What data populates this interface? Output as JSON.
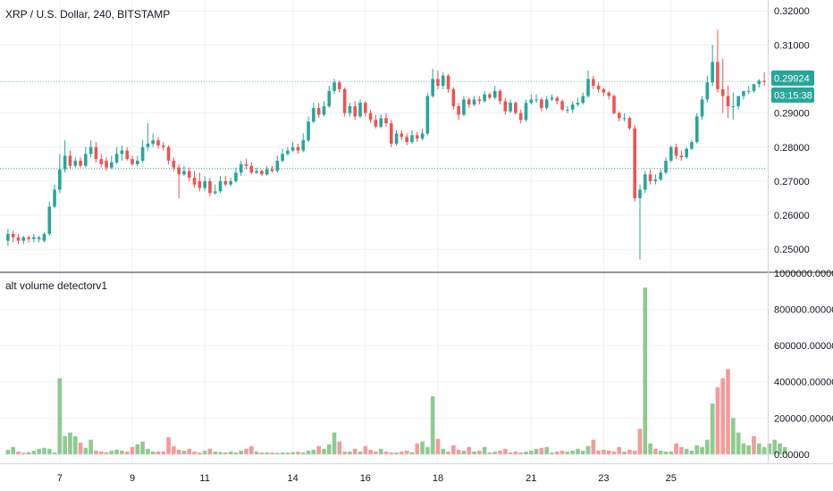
{
  "colors": {
    "up": "#26a69a",
    "down": "#ef5350",
    "vol_up": "#8fca8f",
    "vol_down": "#f29b9b",
    "grid": "#eef0f3",
    "divider": "#3a3a3a",
    "axis_line": "#d1d4dc",
    "dotted_line": "#26a69a",
    "tag_bg": "#26a69a"
  },
  "chart_data": [
    {
      "type": "candlestick",
      "title": "XRP / U.S. Dollar, 240, BITSTAMP",
      "ylim": [
        0.2435,
        0.3232
      ],
      "y_ticks": [
        "0.32000",
        "0.31000",
        "0.29000",
        "0.28000",
        "0.27000",
        "0.26000",
        "0.25000"
      ],
      "y_tick_values": [
        0.32,
        0.31,
        0.29,
        0.28,
        0.27,
        0.26,
        0.25
      ],
      "x_ticks": [
        "7",
        "9",
        "11",
        "14",
        "16",
        "18",
        "21",
        "23",
        "25"
      ],
      "last_price": "0.29924",
      "countdown": "03:15:38",
      "reference_line": 0.2737,
      "candles_close": [
        0.2545,
        0.2535,
        0.2525,
        0.2535,
        0.253,
        0.2535,
        0.2535,
        0.2545,
        0.2625,
        0.2675,
        0.2735,
        0.2775,
        0.2745,
        0.276,
        0.2745,
        0.278,
        0.28,
        0.2765,
        0.275,
        0.274,
        0.2755,
        0.278,
        0.279,
        0.2765,
        0.275,
        0.276,
        0.28,
        0.281,
        0.282,
        0.2805,
        0.28,
        0.276,
        0.274,
        0.272,
        0.273,
        0.271,
        0.269,
        0.268,
        0.27,
        0.2665,
        0.267,
        0.27,
        0.269,
        0.27,
        0.2725,
        0.275,
        0.2745,
        0.2725,
        0.273,
        0.272,
        0.2735,
        0.273,
        0.276,
        0.278,
        0.279,
        0.28,
        0.279,
        0.282,
        0.2875,
        0.2915,
        0.2895,
        0.292,
        0.2965,
        0.299,
        0.297,
        0.29,
        0.292,
        0.289,
        0.293,
        0.29,
        0.288,
        0.286,
        0.2885,
        0.287,
        0.281,
        0.284,
        0.283,
        0.2815,
        0.2835,
        0.2825,
        0.284,
        0.295,
        0.3,
        0.298,
        0.301,
        0.297,
        0.292,
        0.2895,
        0.294,
        0.2925,
        0.294,
        0.2935,
        0.2955,
        0.2945,
        0.2965,
        0.2935,
        0.2905,
        0.293,
        0.29,
        0.288,
        0.293,
        0.294,
        0.294,
        0.2915,
        0.294,
        0.2945,
        0.2935,
        0.291,
        0.291,
        0.2925,
        0.293,
        0.295,
        0.3,
        0.298,
        0.297,
        0.296,
        0.295,
        0.29,
        0.2885,
        0.2885,
        0.2855,
        0.265,
        0.2675,
        0.272,
        0.27,
        0.2705,
        0.2725,
        0.276,
        0.28,
        0.2775,
        0.277,
        0.2795,
        0.2815,
        0.289,
        0.294,
        0.299,
        0.305,
        0.297,
        0.295,
        0.292,
        0.292,
        0.295,
        0.2965,
        0.2965,
        0.2985,
        0.2995,
        0.2992
      ],
      "candles_open": [
        0.2525,
        0.2545,
        0.2535,
        0.2525,
        0.2535,
        0.253,
        0.253,
        0.2525,
        0.2545,
        0.2625,
        0.2675,
        0.2735,
        0.2775,
        0.2745,
        0.276,
        0.2745,
        0.278,
        0.28,
        0.2765,
        0.276,
        0.274,
        0.2755,
        0.278,
        0.279,
        0.2765,
        0.275,
        0.276,
        0.28,
        0.281,
        0.282,
        0.2805,
        0.28,
        0.276,
        0.274,
        0.272,
        0.273,
        0.271,
        0.27,
        0.268,
        0.27,
        0.2665,
        0.267,
        0.27,
        0.269,
        0.27,
        0.2725,
        0.275,
        0.2745,
        0.2725,
        0.273,
        0.272,
        0.2735,
        0.273,
        0.276,
        0.278,
        0.279,
        0.28,
        0.279,
        0.282,
        0.2875,
        0.2915,
        0.2895,
        0.292,
        0.2965,
        0.299,
        0.297,
        0.29,
        0.292,
        0.289,
        0.293,
        0.29,
        0.288,
        0.286,
        0.2885,
        0.287,
        0.281,
        0.284,
        0.283,
        0.2815,
        0.2835,
        0.2825,
        0.284,
        0.295,
        0.3,
        0.298,
        0.301,
        0.297,
        0.292,
        0.2895,
        0.294,
        0.2925,
        0.294,
        0.2935,
        0.2955,
        0.2945,
        0.2965,
        0.2935,
        0.2905,
        0.293,
        0.29,
        0.288,
        0.293,
        0.294,
        0.294,
        0.2915,
        0.294,
        0.2945,
        0.2935,
        0.291,
        0.291,
        0.2925,
        0.293,
        0.295,
        0.3,
        0.298,
        0.297,
        0.296,
        0.295,
        0.29,
        0.2885,
        0.2885,
        0.2855,
        0.265,
        0.2675,
        0.272,
        0.27,
        0.2705,
        0.2725,
        0.276,
        0.28,
        0.2775,
        0.277,
        0.2795,
        0.2815,
        0.289,
        0.294,
        0.299,
        0.305,
        0.297,
        0.295,
        0.292,
        0.292,
        0.295,
        0.2965,
        0.2965,
        0.2985,
        0.2995
      ],
      "candles_high": [
        0.256,
        0.2555,
        0.2545,
        0.254,
        0.254,
        0.2545,
        0.254,
        0.255,
        0.264,
        0.269,
        0.278,
        0.282,
        0.279,
        0.277,
        0.277,
        0.28,
        0.282,
        0.2815,
        0.278,
        0.277,
        0.2775,
        0.28,
        0.2805,
        0.28,
        0.2775,
        0.2775,
        0.282,
        0.287,
        0.284,
        0.283,
        0.2815,
        0.2805,
        0.277,
        0.275,
        0.2745,
        0.274,
        0.273,
        0.2725,
        0.2715,
        0.271,
        0.269,
        0.2715,
        0.2715,
        0.271,
        0.274,
        0.276,
        0.2765,
        0.2755,
        0.274,
        0.2735,
        0.2745,
        0.2745,
        0.2775,
        0.2795,
        0.28,
        0.2815,
        0.281,
        0.284,
        0.289,
        0.293,
        0.293,
        0.2935,
        0.298,
        0.3,
        0.2995,
        0.2975,
        0.293,
        0.2935,
        0.294,
        0.2935,
        0.291,
        0.2895,
        0.2895,
        0.29,
        0.288,
        0.285,
        0.285,
        0.284,
        0.285,
        0.2845,
        0.2855,
        0.296,
        0.303,
        0.3025,
        0.302,
        0.3015,
        0.2975,
        0.293,
        0.295,
        0.2945,
        0.295,
        0.295,
        0.2965,
        0.296,
        0.298,
        0.297,
        0.2945,
        0.294,
        0.2935,
        0.291,
        0.294,
        0.2955,
        0.2955,
        0.2945,
        0.295,
        0.2955,
        0.295,
        0.294,
        0.292,
        0.2935,
        0.2945,
        0.296,
        0.3025,
        0.301,
        0.299,
        0.2975,
        0.2965,
        0.2955,
        0.2905,
        0.29,
        0.289,
        0.2865,
        0.269,
        0.273,
        0.2735,
        0.272,
        0.2735,
        0.277,
        0.2805,
        0.281,
        0.279,
        0.28,
        0.282,
        0.29,
        0.295,
        0.301,
        0.31,
        0.3145,
        0.306,
        0.298,
        0.296,
        0.294,
        0.296,
        0.298,
        0.2985,
        0.3,
        0.302,
        0.3015
      ],
      "candles_low": [
        0.251,
        0.252,
        0.2515,
        0.2515,
        0.252,
        0.252,
        0.252,
        0.252,
        0.254,
        0.262,
        0.2665,
        0.2725,
        0.2735,
        0.274,
        0.274,
        0.274,
        0.277,
        0.2755,
        0.274,
        0.273,
        0.2735,
        0.275,
        0.276,
        0.276,
        0.2745,
        0.2745,
        0.2755,
        0.279,
        0.28,
        0.2795,
        0.279,
        0.275,
        0.273,
        0.265,
        0.2715,
        0.27,
        0.268,
        0.267,
        0.267,
        0.2655,
        0.266,
        0.2665,
        0.2685,
        0.2685,
        0.2695,
        0.2715,
        0.2735,
        0.272,
        0.272,
        0.2715,
        0.2715,
        0.2725,
        0.2725,
        0.2755,
        0.2775,
        0.2785,
        0.278,
        0.2785,
        0.2815,
        0.287,
        0.2885,
        0.289,
        0.2915,
        0.2955,
        0.296,
        0.289,
        0.289,
        0.288,
        0.2885,
        0.289,
        0.287,
        0.2855,
        0.2855,
        0.286,
        0.28,
        0.2805,
        0.282,
        0.2805,
        0.281,
        0.2815,
        0.282,
        0.2835,
        0.2945,
        0.297,
        0.297,
        0.296,
        0.291,
        0.288,
        0.289,
        0.2915,
        0.292,
        0.2925,
        0.293,
        0.294,
        0.294,
        0.2925,
        0.2895,
        0.29,
        0.2895,
        0.287,
        0.2875,
        0.2925,
        0.293,
        0.2905,
        0.291,
        0.2935,
        0.2925,
        0.2905,
        0.29,
        0.29,
        0.292,
        0.2925,
        0.2945,
        0.297,
        0.296,
        0.295,
        0.294,
        0.2895,
        0.2875,
        0.2875,
        0.285,
        0.264,
        0.247,
        0.2665,
        0.269,
        0.269,
        0.27,
        0.272,
        0.2755,
        0.2765,
        0.276,
        0.2765,
        0.279,
        0.281,
        0.288,
        0.293,
        0.298,
        0.296,
        0.29,
        0.2885,
        0.288,
        0.291,
        0.294,
        0.2955,
        0.296,
        0.2975,
        0.298
      ]
    },
    {
      "type": "bar",
      "title": "alt volume detectorv1",
      "ylim": [
        -50000,
        1000000
      ],
      "y_ticks": [
        "1000000.00000",
        "800000.00000",
        "600000.00000",
        "400000.00000",
        "200000.00000",
        "0.00000"
      ],
      "y_tick_values": [
        1000000,
        800000,
        600000,
        400000,
        200000,
        0
      ],
      "values": [
        25000,
        40000,
        15000,
        8000,
        12000,
        20000,
        30000,
        35000,
        30000,
        10000,
        420000,
        100000,
        120000,
        100000,
        65000,
        35000,
        80000,
        20000,
        15000,
        12000,
        20000,
        25000,
        20000,
        15000,
        40000,
        55000,
        70000,
        30000,
        15000,
        15000,
        15000,
        95000,
        45000,
        25000,
        20000,
        30000,
        15000,
        10000,
        20000,
        30000,
        15000,
        12000,
        10000,
        15000,
        10000,
        20000,
        30000,
        45000,
        15000,
        10000,
        10000,
        10000,
        8000,
        10000,
        10000,
        12000,
        15000,
        10000,
        20000,
        25000,
        45000,
        30000,
        55000,
        120000,
        70000,
        15000,
        15000,
        30000,
        15000,
        45000,
        25000,
        15000,
        30000,
        15000,
        10000,
        10000,
        15000,
        20000,
        12000,
        60000,
        70000,
        40000,
        320000,
        85000,
        30000,
        15000,
        50000,
        25000,
        20000,
        40000,
        15000,
        20000,
        40000,
        10000,
        15000,
        20000,
        30000,
        10000,
        15000,
        10000,
        15000,
        20000,
        30000,
        35000,
        40000,
        10000,
        15000,
        20000,
        15000,
        20000,
        30000,
        20000,
        45000,
        80000,
        20000,
        25000,
        20000,
        15000,
        40000,
        15000,
        25000,
        20000,
        140000,
        920000,
        60000,
        30000,
        20000,
        15000,
        15000,
        60000,
        40000,
        30000,
        20000,
        50000,
        40000,
        80000,
        280000,
        370000,
        420000,
        470000,
        200000,
        120000,
        60000,
        50000,
        100000,
        60000,
        40000,
        60000,
        80000,
        60000,
        40000
      ],
      "directions": [
        1,
        1,
        -1,
        -1,
        1,
        1,
        1,
        1,
        1,
        1,
        1,
        1,
        1,
        1,
        -1,
        1,
        1,
        -1,
        -1,
        -1,
        1,
        1,
        1,
        -1,
        -1,
        1,
        1,
        1,
        1,
        -1,
        -1,
        -1,
        -1,
        -1,
        1,
        -1,
        -1,
        -1,
        1,
        -1,
        1,
        1,
        -1,
        1,
        1,
        1,
        -1,
        -1,
        1,
        -1,
        1,
        -1,
        1,
        1,
        1,
        1,
        -1,
        1,
        1,
        1,
        -1,
        1,
        1,
        1,
        -1,
        -1,
        1,
        -1,
        1,
        -1,
        -1,
        -1,
        1,
        -1,
        -1,
        1,
        -1,
        -1,
        1,
        -1,
        1,
        1,
        1,
        -1,
        1,
        -1,
        -1,
        -1,
        1,
        -1,
        1,
        -1,
        1,
        -1,
        1,
        -1,
        -1,
        1,
        -1,
        -1,
        1,
        1,
        1,
        -1,
        1,
        1,
        -1,
        -1,
        1,
        1,
        1,
        1,
        1,
        -1,
        -1,
        -1,
        -1,
        -1,
        -1,
        1,
        -1,
        -1,
        -1,
        1,
        1,
        -1,
        1,
        1,
        1,
        -1,
        -1,
        1,
        1,
        1,
        1,
        1,
        1,
        -1,
        -1,
        -1,
        1,
        1,
        1,
        1,
        -1,
        1,
        1,
        1,
        1,
        1,
        1
      ]
    }
  ]
}
